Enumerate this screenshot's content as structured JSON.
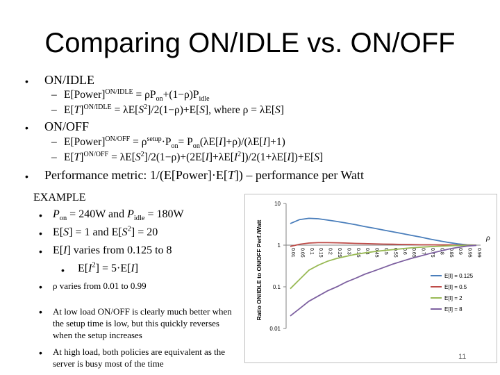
{
  "title": "Comparing ON/IDLE vs. ON/OFF",
  "sections": [
    {
      "label": "ON/IDLE",
      "items": [
        {
          "pre": "E[Power]",
          "sup": "ON/IDLE",
          "post": " = ρP<sub>on</sub>+(1−ρ)P<sub>idle</sub>"
        },
        {
          "pre": "E[<i>T</i>]",
          "sup": "ON/IDLE",
          "post": " = λE[<i>S</i><sup>2</sup>]/2(1−ρ)+E[<i>S</i>], where ρ = λE[<i>S</i>]"
        }
      ]
    },
    {
      "label": "ON/OFF",
      "items": [
        {
          "pre": "E[Power]",
          "sup": "ON/OFF",
          "post": " = ρ<sup>setup</sup>·P<sub>on</sub>= P<sub>on</sub>(λE[<i>I</i>]+ρ)/(λE[<i>I</i>]+1)"
        },
        {
          "pre": "E[<i>T</i>]",
          "sup": "ON/OFF",
          "post": " = λE[<i>S</i><sup>2</sup>]/2(1−ρ)+(2E[<i>I</i>]+λE[<i>I</i><sup>2</sup>])/2(1+λE[<i>I</i>])+E[<i>S</i>]"
        }
      ]
    }
  ],
  "metric": "Performance metric:  1/(E[Power]·E[<i>T</i>]) – performance per Watt",
  "example": {
    "heading": "EXAMPLE",
    "items": [
      "<i>P</i><sub>on</sub> = 240W and <i>P</i><sub>idle</sub> = 180W",
      "E[<i>S</i>] = 1 and E[<i>S</i><sup>2</sup>] = 20",
      "E[<i>I</i>] varies from 0.125 to 8"
    ],
    "sub_item": "E[<i>I</i><sup>2</sup>] = 5·E[<i>I</i>]",
    "rho_range": "ρ varies from 0.01 to 0.99",
    "note1": "At low load ON/OFF is clearly much better when the setup time is low, but this quickly reverses when the setup increases",
    "note2": "At high load, both policies are equivalent as the server is busy most of the time"
  },
  "bullet_glyph": "•",
  "slide_number": "11",
  "chart_data": {
    "type": "line",
    "ylabel": "Ratio ON/IDLE to ON/OFF Perf./Watt",
    "y_scale": "log",
    "ylim": [
      0.01,
      10
    ],
    "y_ticks": [
      "10",
      "1",
      "0.1",
      "0.01"
    ],
    "x_axis_symbol": "ρ",
    "categories": [
      "0.01",
      "0.05",
      "0.1",
      "0.15",
      "0.2",
      "0.25",
      "0.3",
      "0.35",
      "0.4",
      "0.45",
      "0.5",
      "0.55",
      "0.6",
      "0.65",
      "0.7",
      "0.75",
      "0.8",
      "0.85",
      "0.9",
      "0.95",
      "0.99"
    ],
    "series": [
      {
        "name": "E[I] = 0.125",
        "color": "#4a7ebb",
        "values": [
          3.3,
          4.1,
          4.4,
          4.3,
          4.0,
          3.7,
          3.4,
          3.1,
          2.8,
          2.55,
          2.3,
          2.1,
          1.9,
          1.72,
          1.56,
          1.4,
          1.27,
          1.16,
          1.07,
          1.02,
          1.0
        ]
      },
      {
        "name": "E[I] = 0.5",
        "color": "#be4b48",
        "values": [
          0.93,
          1.05,
          1.12,
          1.15,
          1.15,
          1.14,
          1.12,
          1.1,
          1.09,
          1.07,
          1.06,
          1.05,
          1.04,
          1.03,
          1.02,
          1.02,
          1.01,
          1.01,
          1.0,
          1.0,
          1.0
        ]
      },
      {
        "name": "E[I] = 2",
        "color": "#98b954",
        "values": [
          0.09,
          0.15,
          0.25,
          0.33,
          0.41,
          0.48,
          0.54,
          0.6,
          0.65,
          0.7,
          0.74,
          0.78,
          0.82,
          0.86,
          0.89,
          0.92,
          0.94,
          0.96,
          0.98,
          0.99,
          1.0
        ]
      },
      {
        "name": "E[I] = 8",
        "color": "#7d60a0",
        "values": [
          0.02,
          0.03,
          0.045,
          0.06,
          0.08,
          0.1,
          0.13,
          0.16,
          0.2,
          0.24,
          0.29,
          0.35,
          0.41,
          0.48,
          0.55,
          0.63,
          0.71,
          0.8,
          0.88,
          0.95,
          0.99
        ]
      }
    ],
    "legend_position": "bottom-right",
    "grid": false
  }
}
